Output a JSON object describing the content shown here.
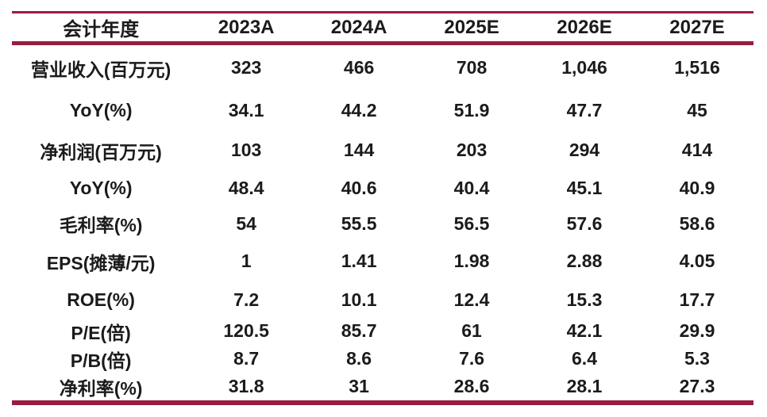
{
  "chart_data": {
    "type": "table",
    "columns": [
      "会计年度",
      "2023A",
      "2024A",
      "2025E",
      "2026E",
      "2027E"
    ],
    "rows": [
      {
        "label": "营业收入(百万元)",
        "values": [
          "323",
          "466",
          "708",
          "1,046",
          "1,516"
        ]
      },
      {
        "label": "YoY(%)",
        "values": [
          "34.1",
          "44.2",
          "51.9",
          "47.7",
          "45"
        ]
      },
      {
        "label": "净利润(百万元)",
        "values": [
          "103",
          "144",
          "203",
          "294",
          "414"
        ]
      },
      {
        "label": "YoY(%)",
        "values": [
          "48.4",
          "40.6",
          "40.4",
          "45.1",
          "40.9"
        ]
      },
      {
        "label": "毛利率(%)",
        "values": [
          "54",
          "55.5",
          "56.5",
          "57.6",
          "58.6"
        ]
      },
      {
        "label": "EPS(摊薄/元)",
        "values": [
          "1",
          "1.41",
          "1.98",
          "2.88",
          "4.05"
        ]
      },
      {
        "label": "ROE(%)",
        "values": [
          "7.2",
          "10.1",
          "12.4",
          "15.3",
          "17.7"
        ]
      },
      {
        "label": "P/E(倍)",
        "values": [
          "120.5",
          "85.7",
          "61",
          "42.1",
          "29.9"
        ]
      },
      {
        "label": "P/B(倍)",
        "values": [
          "8.7",
          "8.6",
          "7.6",
          "6.4",
          "5.3"
        ]
      },
      {
        "label": "净利率(%)",
        "values": [
          "31.8",
          "31",
          "28.6",
          "28.1",
          "27.3"
        ]
      }
    ]
  },
  "colors": {
    "rule": "#9A1C40",
    "text": "#1b1b1b",
    "background": "#ffffff"
  }
}
